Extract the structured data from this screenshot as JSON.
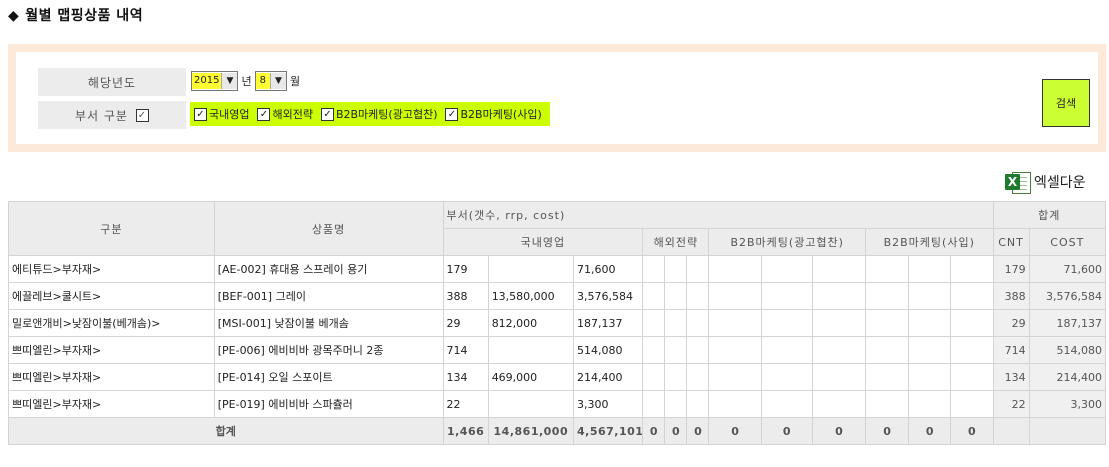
{
  "page_title": "월별 맵핑상품 내역",
  "title_marker": "◆",
  "search": {
    "year_label": "해당년도",
    "year_value": "2015",
    "year_suffix": "년",
    "month_value": "8",
    "month_suffix": "월",
    "dept_label": "부서 구분",
    "dept_all_checked": true,
    "departments": [
      {
        "label": "국내영업",
        "checked": true
      },
      {
        "label": "해외전략",
        "checked": true
      },
      {
        "label": "B2B마케팅(광고협찬)",
        "checked": true
      },
      {
        "label": "B2B마케팅(사입)",
        "checked": true
      }
    ],
    "search_button": "검색",
    "highlight_color": "#ccff00"
  },
  "excel_button": "엑셀다운",
  "table": {
    "headers": {
      "category": "구분",
      "product": "상품명",
      "dept_group": "부서(갯수, rrp, cost)",
      "total_group": "합계",
      "depts": [
        "국내영업",
        "해외전략",
        "B2B마케팅(광고협찬)",
        "B2B마케팅(사입)"
      ],
      "cnt": "CNT",
      "cost": "COST"
    },
    "rows": [
      {
        "category": "에티튜드>부자재>",
        "product": "[AE-002] 휴대용 스프레이 용기",
        "d1": [
          "179",
          "",
          "71,600"
        ],
        "cnt": "179",
        "cost": "71,600"
      },
      {
        "category": "에끌레브>쿨시트>",
        "product": "[BEF-001] 그레이",
        "d1": [
          "388",
          "13,580,000",
          "3,576,584"
        ],
        "cnt": "388",
        "cost": "3,576,584"
      },
      {
        "category": "밀로앤개비>낮잠이불(베개솜)>",
        "product": "[MSI-001] 낮잠이불 베개솜",
        "d1": [
          "29",
          "812,000",
          "187,137"
        ],
        "cnt": "29",
        "cost": "187,137"
      },
      {
        "category": "쁘띠엘린>부자재>",
        "product": "[PE-006] 에비비바 광목주머니 2종",
        "d1": [
          "714",
          "",
          "514,080"
        ],
        "cnt": "714",
        "cost": "514,080"
      },
      {
        "category": "쁘띠엘린>부자재>",
        "product": "[PE-014] 오일 스포이트",
        "d1": [
          "134",
          "469,000",
          "214,400"
        ],
        "cnt": "134",
        "cost": "214,400"
      },
      {
        "category": "쁘띠엘린>부자재>",
        "product": "[PE-019] 에비비바 스파츌러",
        "d1": [
          "22",
          "",
          "3,300"
        ],
        "cnt": "22",
        "cost": "3,300"
      }
    ],
    "total": {
      "label": "합계",
      "d1": [
        "1,466",
        "14,861,000",
        "4,567,101"
      ],
      "d2": [
        "0",
        "0",
        "0"
      ],
      "d3": [
        "0",
        "0",
        "0"
      ],
      "d4": [
        "0",
        "0",
        "0"
      ]
    }
  }
}
